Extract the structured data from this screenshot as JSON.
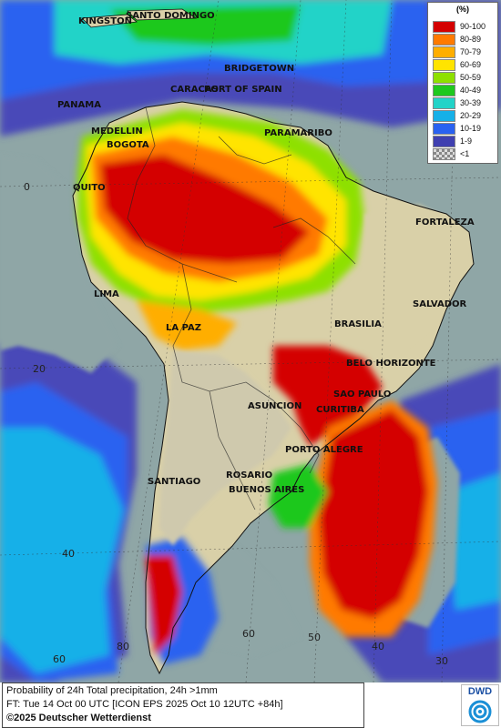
{
  "legend": {
    "unit": "(%)",
    "classes": [
      {
        "label": "90-100",
        "color": "#d40000"
      },
      {
        "label": "80-89",
        "color": "#ff7a00"
      },
      {
        "label": "70-79",
        "color": "#ffae00"
      },
      {
        "label": "60-69",
        "color": "#ffe400"
      },
      {
        "label": "50-59",
        "color": "#8ee000"
      },
      {
        "label": "40-49",
        "color": "#1ec81e"
      },
      {
        "label": "30-39",
        "color": "#22d3c8"
      },
      {
        "label": "20-29",
        "color": "#16b0e8"
      },
      {
        "label": "10-19",
        "color": "#2a62f0"
      },
      {
        "label": "1-9",
        "color": "#4040b0"
      },
      {
        "label": "<1",
        "color": "#c8c8c8"
      }
    ]
  },
  "cities": [
    "KINGSTON",
    "SANTO DOMINGO",
    "BRIDGETOWN",
    "CARACAS",
    "PORT OF SPAIN",
    "PANAMA",
    "MEDELLIN",
    "BOGOTA",
    "PARAMARIBO",
    "QUITO",
    "FORTALEZA",
    "LIMA",
    "SALVADOR",
    "LA PAZ",
    "BRASILIA",
    "BELO HORIZONTE",
    "SAO PAULO",
    "ASUNCION",
    "CURITIBA",
    "PORTO ALEGRE",
    "SANTIAGO",
    "ROSARIO",
    "BUENOS AIRES"
  ],
  "grid_labels": [
    "0",
    "20",
    "40",
    "60",
    "80",
    "60",
    "50",
    "40",
    "30"
  ],
  "caption": {
    "line1": "Probability of 24h Total precipitation, 24h >1mm",
    "line2": "FT: Tue 14 Oct 00 UTC [ICON EPS 2025 Oct 10 12UTC +84h]",
    "line3": "©2025 Deutscher Wetterdienst"
  },
  "logo": {
    "text": "DWD"
  },
  "colors": {
    "ocean": "#8fa6a6",
    "land": "#d9d0a8",
    "dry_land": "#cfc9ad"
  }
}
